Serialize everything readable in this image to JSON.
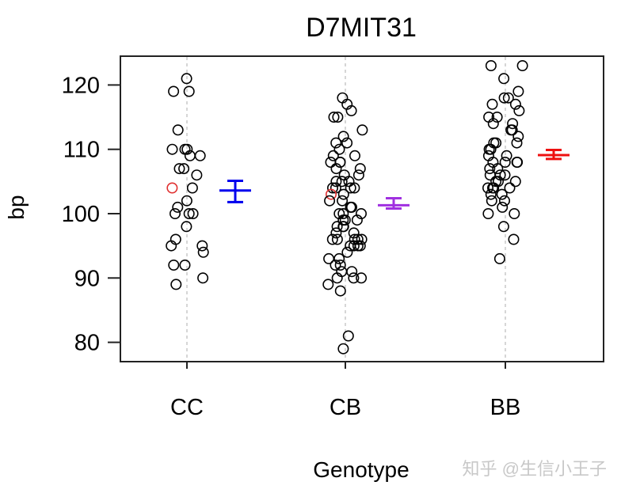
{
  "chart_data": {
    "type": "scatter",
    "subtype": "strip-chart-with-mean-se-error-bars",
    "title": "D7MIT31",
    "xlabel": "Genotype",
    "ylabel": "bp",
    "categories": [
      "CC",
      "CB",
      "BB"
    ],
    "yticks": [
      80,
      90,
      100,
      110,
      120
    ],
    "ylim": [
      77,
      125
    ],
    "grid": "vertical dotted lines at each category",
    "legend": null,
    "highlight_color": "#e03030",
    "series": [
      {
        "name": "CC",
        "point_color": "#000000",
        "values": [
          121,
          119,
          119,
          113,
          110,
          110,
          110,
          109,
          109,
          107,
          107,
          106,
          104,
          104,
          102,
          101,
          100,
          100,
          100,
          98,
          96,
          95,
          95,
          94,
          92,
          92,
          90,
          89
        ],
        "highlight_index": 13,
        "mean": 103.6,
        "se_low": 101.8,
        "se_high": 105.1,
        "error_bar_color": "#0000ee"
      },
      {
        "name": "CB",
        "point_color": "#000000",
        "values": [
          118,
          117,
          116,
          115,
          115,
          113,
          112,
          111,
          111,
          110,
          109,
          109,
          108,
          108,
          108,
          107,
          107,
          106,
          106,
          105,
          105,
          105,
          104,
          104,
          104,
          104,
          103,
          103,
          102,
          102,
          101,
          101,
          100,
          100,
          100,
          99,
          99,
          99,
          98,
          98,
          98,
          97,
          97,
          96,
          96,
          96,
          96,
          96,
          95,
          95,
          95,
          95,
          94,
          93,
          93,
          92,
          92,
          91,
          91,
          90,
          90,
          90,
          89,
          88,
          81,
          79
        ],
        "highlight_index": 27,
        "mean": 101.3,
        "se_low": 100.8,
        "se_high": 102.4,
        "error_bar_color": "#a030e0"
      },
      {
        "name": "BB",
        "point_color": "#000000",
        "values": [
          123,
          123,
          121,
          119,
          118,
          118,
          117,
          117,
          116,
          115,
          115,
          114,
          114,
          113,
          113,
          112,
          111,
          111,
          111,
          110,
          110,
          109,
          109,
          108,
          108,
          108,
          108,
          107,
          107,
          106,
          106,
          106,
          105,
          105,
          105,
          104,
          104,
          104,
          104,
          103,
          103,
          102,
          102,
          101,
          100,
          100,
          98,
          96,
          93
        ],
        "highlight_index": null,
        "mean": 109.1,
        "se_low": 108.5,
        "se_high": 109.9,
        "error_bar_color": "#ee1010"
      }
    ]
  },
  "watermark": "知乎 @生信小王子"
}
